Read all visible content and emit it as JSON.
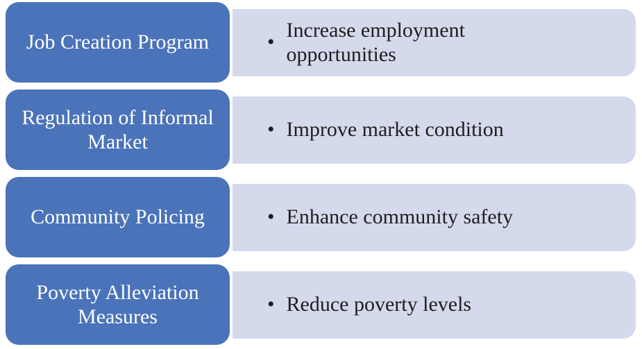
{
  "diagram": {
    "type": "horizontal-label-bullet-list",
    "bullet_char": "•",
    "colors": {
      "label_background": "#4a73b9",
      "label_text": "#ffffff",
      "bullet_background": "#d5d9ec",
      "bullet_text": "#1e1e1e",
      "page_background": "#ffffff"
    },
    "rows": [
      {
        "label": "Job Creation Program",
        "bullet": "Increase employment opportunities"
      },
      {
        "label": "Regulation of Informal Market",
        "bullet": "Improve market condition"
      },
      {
        "label": "Community Policing",
        "bullet": "Enhance community safety"
      },
      {
        "label": "Poverty Alleviation Measures",
        "bullet": "Reduce poverty levels"
      }
    ]
  }
}
